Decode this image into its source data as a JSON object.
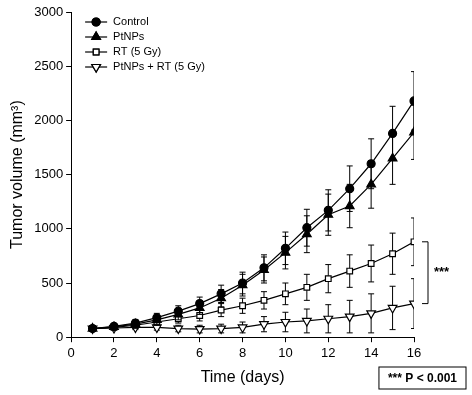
{
  "chart_data": {
    "type": "line",
    "x_label": "Time (days)",
    "y_label": "Tumor volume (mm³)",
    "xlim": [
      0,
      16
    ],
    "xticks": [
      0,
      2,
      4,
      6,
      8,
      10,
      12,
      14,
      16
    ],
    "ylim": [
      0,
      3000
    ],
    "yticks": [
      0,
      500,
      1000,
      1500,
      2000,
      2500,
      3000
    ],
    "grid": false,
    "legend": "top-left",
    "x": [
      1,
      2,
      3,
      4,
      5,
      6,
      7,
      8,
      9,
      10,
      11,
      12,
      13,
      14,
      15,
      16
    ],
    "series": [
      {
        "name": "Control",
        "color": "#000000",
        "marker": "circle",
        "line_style": "solid",
        "values": [
          80,
          100,
          130,
          180,
          240,
          310,
          400,
          500,
          640,
          820,
          1010,
          1170,
          1370,
          1600,
          1880,
          2180
        ],
        "errors": [
          20,
          25,
          30,
          40,
          50,
          60,
          80,
          100,
          120,
          150,
          170,
          190,
          210,
          230,
          250,
          270
        ]
      },
      {
        "name": "PtNPs",
        "color": "#000000",
        "marker": "triangle",
        "line_style": "solid",
        "values": [
          80,
          95,
          120,
          160,
          210,
          270,
          360,
          480,
          620,
          780,
          950,
          1130,
          1210,
          1410,
          1650,
          1890
        ],
        "errors": [
          20,
          25,
          30,
          40,
          50,
          60,
          80,
          100,
          120,
          150,
          170,
          190,
          200,
          220,
          240,
          250
        ]
      },
      {
        "name": "RT (5 Gy)",
        "color": "#000000",
        "marker": "open-square",
        "line_style": "solid",
        "values": [
          80,
          90,
          110,
          140,
          170,
          200,
          250,
          290,
          340,
          400,
          460,
          540,
          610,
          680,
          770,
          880
        ],
        "errors": [
          15,
          20,
          25,
          30,
          40,
          50,
          60,
          70,
          80,
          100,
          120,
          130,
          150,
          170,
          190,
          220
        ]
      },
      {
        "name": "PtNPs + RT (5 Gy)",
        "color": "#000000",
        "marker": "open-triangle-down",
        "line_style": "solid",
        "values": [
          80,
          85,
          90,
          90,
          80,
          75,
          80,
          90,
          120,
          140,
          150,
          170,
          190,
          220,
          270,
          310
        ],
        "errors": [
          10,
          15,
          20,
          25,
          30,
          35,
          40,
          50,
          70,
          90,
          110,
          130,
          150,
          180,
          200,
          230
        ]
      }
    ],
    "annotations": [
      {
        "text": "***",
        "y": [
          310,
          880
        ]
      },
      {
        "text": "*** P < 0.001"
      }
    ]
  }
}
